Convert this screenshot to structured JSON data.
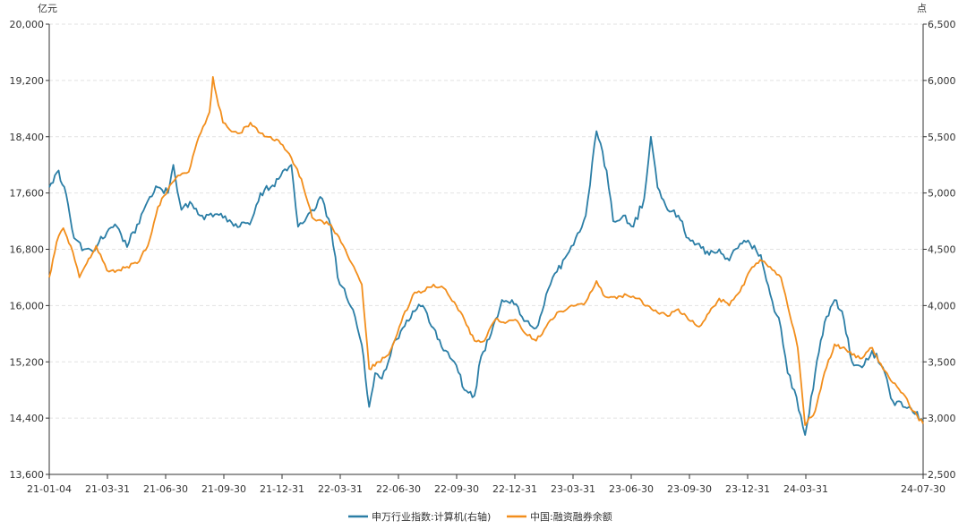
{
  "chart_data": {
    "type": "line",
    "left_axis": {
      "unit": "亿元",
      "ylim": [
        13600,
        20000
      ],
      "ticks": [
        "13,600",
        "14,400",
        "15,200",
        "16,000",
        "16,800",
        "17,600",
        "18,400",
        "19,200",
        "20,000"
      ]
    },
    "right_axis": {
      "unit": "点",
      "ylim": [
        2500,
        6500
      ],
      "ticks": [
        "2,500",
        "3,000",
        "3,500",
        "4,000",
        "4,500",
        "5,000",
        "5,500",
        "6,000",
        "6,500"
      ]
    },
    "x_ticks": [
      "21-01-04",
      "21-03-31",
      "21-06-30",
      "21-09-30",
      "21-12-31",
      "22-03-31",
      "22-06-30",
      "22-09-30",
      "22-12-31",
      "23-03-31",
      "23-06-30",
      "23-09-30",
      "23-12-31",
      "24-03-31",
      "24-07-30"
    ],
    "x_range": [
      "2021-01-04",
      "2024-07-30"
    ],
    "grid": true,
    "legend_position": "bottom-center",
    "series": [
      {
        "name": "申万行业指数:计算机(右轴)",
        "axis": "right",
        "color": "#2b7ea6",
        "points": [
          [
            "2021-01-04",
            5050
          ],
          [
            "2021-01-18",
            5200
          ],
          [
            "2021-02-01",
            4900
          ],
          [
            "2021-02-10",
            4600
          ],
          [
            "2021-02-25",
            4500
          ],
          [
            "2021-03-10",
            4480
          ],
          [
            "2021-03-31",
            4650
          ],
          [
            "2021-04-15",
            4700
          ],
          [
            "2021-04-30",
            4520
          ],
          [
            "2021-05-15",
            4720
          ],
          [
            "2021-05-31",
            4930
          ],
          [
            "2021-06-15",
            5050
          ],
          [
            "2021-06-30",
            5000
          ],
          [
            "2021-07-08",
            5250
          ],
          [
            "2021-07-20",
            4850
          ],
          [
            "2021-08-05",
            4900
          ],
          [
            "2021-08-20",
            4800
          ],
          [
            "2021-09-05",
            4790
          ],
          [
            "2021-09-20",
            4780
          ],
          [
            "2021-09-30",
            4760
          ],
          [
            "2021-10-15",
            4700
          ],
          [
            "2021-10-30",
            4720
          ],
          [
            "2021-11-15",
            5000
          ],
          [
            "2021-11-30",
            5050
          ],
          [
            "2021-12-15",
            5150
          ],
          [
            "2021-12-31",
            5250
          ],
          [
            "2022-01-10",
            4700
          ],
          [
            "2022-01-20",
            4750
          ],
          [
            "2022-01-31",
            4850
          ],
          [
            "2022-02-15",
            4950
          ],
          [
            "2022-02-28",
            4700
          ],
          [
            "2022-03-10",
            4250
          ],
          [
            "2022-03-20",
            4150
          ],
          [
            "2022-04-05",
            3900
          ],
          [
            "2022-04-15",
            3650
          ],
          [
            "2022-04-26",
            3100
          ],
          [
            "2022-05-05",
            3400
          ],
          [
            "2022-05-15",
            3350
          ],
          [
            "2022-05-31",
            3650
          ],
          [
            "2022-06-15",
            3800
          ],
          [
            "2022-06-30",
            3950
          ],
          [
            "2022-07-15",
            4000
          ],
          [
            "2022-07-31",
            3800
          ],
          [
            "2022-08-15",
            3600
          ],
          [
            "2022-08-31",
            3500
          ],
          [
            "2022-09-15",
            3250
          ],
          [
            "2022-09-30",
            3200
          ],
          [
            "2022-10-10",
            3550
          ],
          [
            "2022-10-25",
            3750
          ],
          [
            "2022-11-10",
            4050
          ],
          [
            "2022-11-25",
            4050
          ],
          [
            "2022-12-10",
            3900
          ],
          [
            "2022-12-31",
            3800
          ],
          [
            "2023-01-15",
            4100
          ],
          [
            "2023-01-31",
            4300
          ],
          [
            "2023-02-15",
            4450
          ],
          [
            "2023-02-28",
            4600
          ],
          [
            "2023-03-15",
            4800
          ],
          [
            "2023-03-31",
            5550
          ],
          [
            "2023-04-15",
            5200
          ],
          [
            "2023-04-25",
            4750
          ],
          [
            "2023-05-10",
            4800
          ],
          [
            "2023-05-25",
            4700
          ],
          [
            "2023-06-10",
            4950
          ],
          [
            "2023-06-20",
            5500
          ],
          [
            "2023-06-30",
            5050
          ],
          [
            "2023-07-15",
            4850
          ],
          [
            "2023-07-31",
            4800
          ],
          [
            "2023-08-15",
            4600
          ],
          [
            "2023-08-31",
            4550
          ],
          [
            "2023-09-15",
            4450
          ],
          [
            "2023-09-30",
            4500
          ],
          [
            "2023-10-15",
            4400
          ],
          [
            "2023-10-31",
            4550
          ],
          [
            "2023-11-15",
            4550
          ],
          [
            "2023-12-01",
            4450
          ],
          [
            "2023-12-15",
            4100
          ],
          [
            "2023-12-31",
            3800
          ],
          [
            "2024-01-10",
            3400
          ],
          [
            "2024-01-20",
            3250
          ],
          [
            "2024-02-05",
            2850
          ],
          [
            "2024-02-20",
            3400
          ],
          [
            "2024-03-05",
            3850
          ],
          [
            "2024-03-20",
            4050
          ],
          [
            "2024-03-31",
            3950
          ],
          [
            "2024-04-15",
            3500
          ],
          [
            "2024-04-30",
            3450
          ],
          [
            "2024-05-15",
            3600
          ],
          [
            "2024-05-31",
            3450
          ],
          [
            "2024-06-15",
            3150
          ],
          [
            "2024-06-30",
            3100
          ],
          [
            "2024-07-15",
            3050
          ],
          [
            "2024-07-30",
            2980
          ]
        ]
      },
      {
        "name": "中国:融资融券余额",
        "axis": "left",
        "color": "#f28e1c",
        "points": [
          [
            "2021-01-04",
            16400
          ],
          [
            "2021-01-15",
            16900
          ],
          [
            "2021-01-25",
            17100
          ],
          [
            "2021-02-05",
            16850
          ],
          [
            "2021-02-18",
            16400
          ],
          [
            "2021-03-01",
            16600
          ],
          [
            "2021-03-15",
            16850
          ],
          [
            "2021-03-31",
            16500
          ],
          [
            "2021-04-15",
            16500
          ],
          [
            "2021-04-30",
            16550
          ],
          [
            "2021-05-15",
            16600
          ],
          [
            "2021-05-31",
            16850
          ],
          [
            "2021-06-15",
            17400
          ],
          [
            "2021-06-30",
            17650
          ],
          [
            "2021-07-15",
            17850
          ],
          [
            "2021-07-31",
            17900
          ],
          [
            "2021-08-15",
            18400
          ],
          [
            "2021-08-31",
            18750
          ],
          [
            "2021-09-05",
            19250
          ],
          [
            "2021-09-10",
            19000
          ],
          [
            "2021-09-20",
            18600
          ],
          [
            "2021-09-30",
            18500
          ],
          [
            "2021-10-15",
            18450
          ],
          [
            "2021-10-31",
            18600
          ],
          [
            "2021-11-15",
            18450
          ],
          [
            "2021-11-30",
            18400
          ],
          [
            "2021-12-15",
            18300
          ],
          [
            "2021-12-31",
            18100
          ],
          [
            "2022-01-15",
            17800
          ],
          [
            "2022-01-31",
            17250
          ],
          [
            "2022-02-15",
            17200
          ],
          [
            "2022-02-28",
            17150
          ],
          [
            "2022-03-15",
            16900
          ],
          [
            "2022-03-31",
            16600
          ],
          [
            "2022-04-15",
            16300
          ],
          [
            "2022-04-26",
            15100
          ],
          [
            "2022-05-10",
            15200
          ],
          [
            "2022-05-25",
            15300
          ],
          [
            "2022-06-10",
            15700
          ],
          [
            "2022-06-30",
            16150
          ],
          [
            "2022-07-15",
            16200
          ],
          [
            "2022-07-31",
            16300
          ],
          [
            "2022-08-15",
            16250
          ],
          [
            "2022-08-31",
            16050
          ],
          [
            "2022-09-15",
            15800
          ],
          [
            "2022-09-30",
            15500
          ],
          [
            "2022-10-15",
            15500
          ],
          [
            "2022-10-31",
            15800
          ],
          [
            "2022-11-15",
            15750
          ],
          [
            "2022-11-30",
            15800
          ],
          [
            "2022-12-15",
            15600
          ],
          [
            "2022-12-31",
            15500
          ],
          [
            "2023-01-15",
            15700
          ],
          [
            "2023-01-31",
            15900
          ],
          [
            "2023-02-15",
            15950
          ],
          [
            "2023-02-28",
            16000
          ],
          [
            "2023-03-15",
            16050
          ],
          [
            "2023-03-31",
            16350
          ],
          [
            "2023-04-10",
            16150
          ],
          [
            "2023-04-30",
            16100
          ],
          [
            "2023-05-15",
            16150
          ],
          [
            "2023-05-31",
            16100
          ],
          [
            "2023-06-15",
            16000
          ],
          [
            "2023-06-30",
            15900
          ],
          [
            "2023-07-15",
            15850
          ],
          [
            "2023-07-31",
            15950
          ],
          [
            "2023-08-15",
            15800
          ],
          [
            "2023-08-31",
            15700
          ],
          [
            "2023-09-15",
            15900
          ],
          [
            "2023-09-30",
            16100
          ],
          [
            "2023-10-15",
            16000
          ],
          [
            "2023-10-31",
            16200
          ],
          [
            "2023-11-15",
            16500
          ],
          [
            "2023-11-30",
            16650
          ],
          [
            "2023-12-15",
            16550
          ],
          [
            "2023-12-31",
            16400
          ],
          [
            "2024-01-10",
            16000
          ],
          [
            "2024-01-25",
            15400
          ],
          [
            "2024-02-05",
            14300
          ],
          [
            "2024-02-20",
            14500
          ],
          [
            "2024-03-05",
            15050
          ],
          [
            "2024-03-20",
            15450
          ],
          [
            "2024-03-31",
            15400
          ],
          [
            "2024-04-15",
            15300
          ],
          [
            "2024-04-30",
            15250
          ],
          [
            "2024-05-15",
            15400
          ],
          [
            "2024-05-31",
            15100
          ],
          [
            "2024-06-15",
            14900
          ],
          [
            "2024-06-30",
            14750
          ],
          [
            "2024-07-15",
            14500
          ],
          [
            "2024-07-30",
            14320
          ]
        ]
      }
    ]
  }
}
